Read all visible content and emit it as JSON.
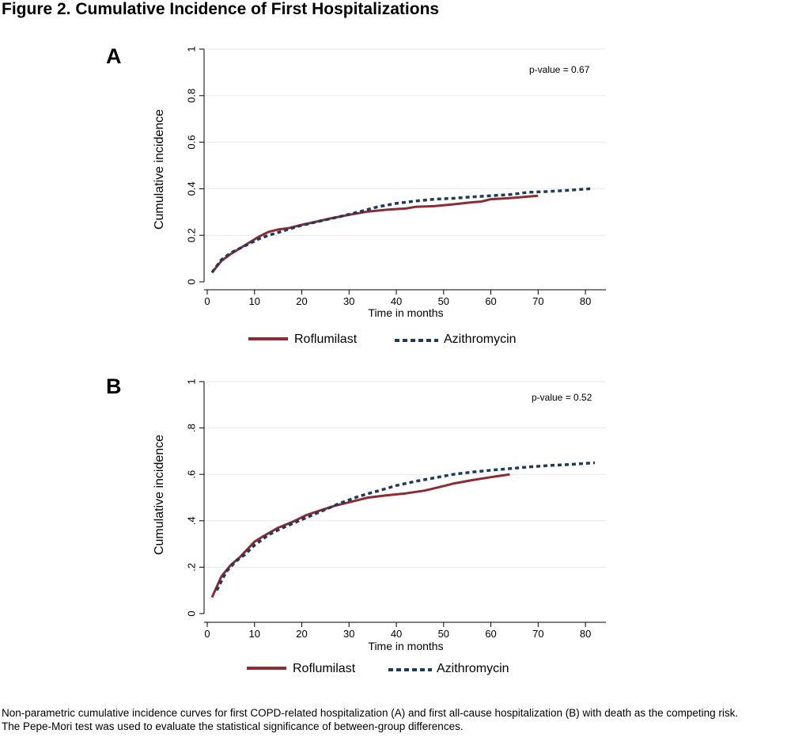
{
  "figure": {
    "title": "Figure 2. Cumulative Incidence of First Hospitalizations",
    "caption_line1": "Non-parametric cumulative incidence curves for first COPD-related hospitalization (A) and first all-cause hospitalization (B) with death as the competing risk.",
    "caption_line2": "The Pepe-Mori test was used to evaluate the statistical significance of between-group differences."
  },
  "colors": {
    "roflumilast": "#8b2b34",
    "azithromycin": "#1f3b5c",
    "grid": "#e2e8ea",
    "axis": "#000000"
  },
  "chart_data": [
    {
      "type": "line",
      "panel_label": "A",
      "annotation": "p-value = 0.67",
      "xlabel": "Time in months",
      "ylabel": "Cumulative incidence",
      "xlim": [
        0,
        84
      ],
      "ylim": [
        0,
        1
      ],
      "xticks": [
        0,
        10,
        20,
        30,
        40,
        50,
        60,
        70,
        80
      ],
      "xtick_labels": [
        "0",
        "10",
        "20",
        "30",
        "40",
        "50",
        "60",
        "70",
        "80"
      ],
      "yticks": [
        0,
        0.2,
        0.4,
        0.6,
        0.8,
        1
      ],
      "ytick_labels": [
        "0",
        "0.2",
        "0.4",
        "0.6",
        "0.8",
        "1"
      ],
      "grid": true,
      "series": [
        {
          "name": "Roflumilast",
          "style": "solid",
          "x": [
            1,
            3,
            5,
            7,
            9,
            11,
            13,
            15,
            17,
            20,
            23,
            26,
            30,
            34,
            38,
            42,
            44,
            48,
            52,
            56,
            58,
            60,
            64,
            70
          ],
          "y": [
            0.04,
            0.09,
            0.12,
            0.145,
            0.17,
            0.195,
            0.215,
            0.225,
            0.23,
            0.245,
            0.258,
            0.272,
            0.288,
            0.302,
            0.31,
            0.315,
            0.322,
            0.325,
            0.333,
            0.342,
            0.345,
            0.355,
            0.36,
            0.37
          ]
        },
        {
          "name": "Azithromycin",
          "style": "dashed",
          "x": [
            1,
            3,
            5,
            7,
            9,
            11,
            13,
            15,
            17,
            20,
            24,
            28,
            32,
            36,
            40,
            44,
            48,
            52,
            56,
            60,
            64,
            68,
            72,
            76,
            81
          ],
          "y": [
            0.04,
            0.095,
            0.125,
            0.145,
            0.165,
            0.185,
            0.2,
            0.212,
            0.225,
            0.243,
            0.262,
            0.28,
            0.3,
            0.322,
            0.337,
            0.347,
            0.355,
            0.359,
            0.365,
            0.37,
            0.375,
            0.385,
            0.388,
            0.393,
            0.4
          ]
        }
      ]
    },
    {
      "type": "line",
      "panel_label": "B",
      "annotation": "p-value = 0.52",
      "xlabel": "Time in months",
      "ylabel": "Cumulative incidence",
      "xlim": [
        0,
        84
      ],
      "ylim": [
        0,
        1
      ],
      "xticks": [
        0,
        10,
        20,
        30,
        40,
        50,
        60,
        70,
        80
      ],
      "xtick_labels": [
        "0",
        "10",
        "20",
        "30",
        "40",
        "50",
        "60",
        "70",
        "80"
      ],
      "yticks": [
        0,
        0.2,
        0.4,
        0.6,
        0.8,
        1
      ],
      "ytick_labels": [
        "0",
        ".2",
        ".4",
        ".6",
        ".8",
        "1"
      ],
      "grid": true,
      "series": [
        {
          "name": "Roflumilast",
          "style": "solid",
          "x": [
            1,
            3,
            5,
            7,
            10,
            12,
            15,
            18,
            21,
            24,
            27,
            30,
            34,
            38,
            42,
            46,
            50,
            52,
            56,
            60,
            64
          ],
          "y": [
            0.07,
            0.16,
            0.21,
            0.245,
            0.31,
            0.335,
            0.37,
            0.395,
            0.425,
            0.445,
            0.465,
            0.48,
            0.5,
            0.51,
            0.518,
            0.53,
            0.55,
            0.56,
            0.575,
            0.588,
            0.6
          ]
        },
        {
          "name": "Azithromycin",
          "style": "dashed",
          "x": [
            2,
            4,
            6,
            8,
            10,
            13,
            16,
            20,
            24,
            28,
            32,
            36,
            40,
            44,
            48,
            52,
            56,
            60,
            64,
            68,
            72,
            76,
            82
          ],
          "y": [
            0.1,
            0.18,
            0.225,
            0.255,
            0.295,
            0.34,
            0.37,
            0.405,
            0.44,
            0.475,
            0.505,
            0.528,
            0.552,
            0.57,
            0.585,
            0.6,
            0.61,
            0.618,
            0.625,
            0.632,
            0.638,
            0.642,
            0.65
          ]
        }
      ]
    }
  ],
  "legend": {
    "items": [
      "Roflumilast",
      "Azithromycin"
    ]
  }
}
